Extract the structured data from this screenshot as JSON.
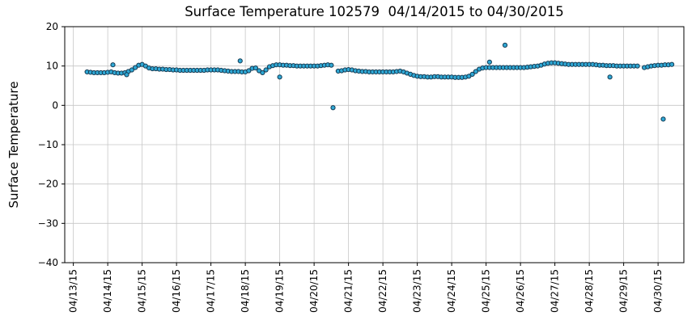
{
  "figure": {
    "title": "Surface Temperature 102579  04/14/2015 to 04/30/2015",
    "ylabel": "Surface Temperature"
  },
  "chart_data": {
    "type": "scatter",
    "title": "Surface Temperature 102579  04/14/2015 to 04/30/2015",
    "xlabel": "",
    "ylabel": "Surface Temperature",
    "x_unit": "day-of-month (April 2015)",
    "xlim": [
      12.75,
      30.75
    ],
    "ylim": [
      -40,
      20
    ],
    "grid": true,
    "grid_color": "#c6c6c6",
    "marker": {
      "fill": "#2fa8d5",
      "edge": "#143a52",
      "radius": 2.6
    },
    "x_ticks": [
      {
        "value": 13,
        "label": "04/13/15"
      },
      {
        "value": 14,
        "label": "04/14/15"
      },
      {
        "value": 15,
        "label": "04/15/15"
      },
      {
        "value": 16,
        "label": "04/16/15"
      },
      {
        "value": 17,
        "label": "04/17/15"
      },
      {
        "value": 18,
        "label": "04/18/15"
      },
      {
        "value": 19,
        "label": "04/19/15"
      },
      {
        "value": 20,
        "label": "04/20/15"
      },
      {
        "value": 21,
        "label": "04/21/15"
      },
      {
        "value": 22,
        "label": "04/22/15"
      },
      {
        "value": 23,
        "label": "04/23/15"
      },
      {
        "value": 24,
        "label": "04/24/15"
      },
      {
        "value": 25,
        "label": "04/25/15"
      },
      {
        "value": 26,
        "label": "04/26/15"
      },
      {
        "value": 27,
        "label": "04/27/15"
      },
      {
        "value": 28,
        "label": "04/28/15"
      },
      {
        "value": 29,
        "label": "04/29/15"
      },
      {
        "value": 30,
        "label": "04/30/15"
      }
    ],
    "y_ticks": [
      {
        "value": 20,
        "label": "20"
      },
      {
        "value": 10,
        "label": "10"
      },
      {
        "value": 0,
        "label": "0"
      },
      {
        "value": -10,
        "label": "−10"
      },
      {
        "value": -20,
        "label": "−20"
      },
      {
        "value": -30,
        "label": "−30"
      },
      {
        "value": -40,
        "label": "−40"
      }
    ],
    "series": [
      {
        "name": "surface_temperature",
        "points": [
          [
            13.4,
            8.5
          ],
          [
            13.5,
            8.4
          ],
          [
            13.6,
            8.3
          ],
          [
            13.7,
            8.3
          ],
          [
            13.8,
            8.3
          ],
          [
            13.9,
            8.3
          ],
          [
            14.0,
            8.4
          ],
          [
            14.1,
            8.5
          ],
          [
            14.2,
            8.3
          ],
          [
            14.3,
            8.2
          ],
          [
            14.4,
            8.2
          ],
          [
            14.5,
            8.3
          ],
          [
            14.6,
            8.6
          ],
          [
            14.7,
            9.0
          ],
          [
            14.8,
            9.6
          ],
          [
            14.9,
            10.2
          ],
          [
            15.0,
            10.4
          ],
          [
            15.1,
            10.0
          ],
          [
            15.2,
            9.5
          ],
          [
            15.3,
            9.3
          ],
          [
            15.4,
            9.3
          ],
          [
            15.5,
            9.2
          ],
          [
            15.6,
            9.2
          ],
          [
            15.7,
            9.1
          ],
          [
            15.8,
            9.1
          ],
          [
            15.9,
            9.0
          ],
          [
            16.0,
            9.0
          ],
          [
            16.1,
            8.9
          ],
          [
            16.2,
            8.9
          ],
          [
            16.3,
            8.9
          ],
          [
            16.4,
            8.9
          ],
          [
            16.5,
            8.9
          ],
          [
            16.6,
            8.9
          ],
          [
            16.7,
            8.9
          ],
          [
            16.8,
            8.9
          ],
          [
            16.9,
            9.0
          ],
          [
            17.0,
            9.0
          ],
          [
            17.1,
            9.0
          ],
          [
            17.2,
            9.0
          ],
          [
            17.3,
            8.9
          ],
          [
            17.4,
            8.8
          ],
          [
            17.5,
            8.7
          ],
          [
            17.6,
            8.6
          ],
          [
            17.7,
            8.6
          ],
          [
            17.8,
            8.6
          ],
          [
            17.9,
            8.5
          ],
          [
            18.0,
            8.5
          ],
          [
            18.1,
            8.8
          ],
          [
            18.2,
            9.4
          ],
          [
            18.3,
            9.5
          ],
          [
            18.4,
            8.8
          ],
          [
            18.5,
            8.3
          ],
          [
            18.6,
            9.0
          ],
          [
            18.7,
            9.8
          ],
          [
            18.8,
            10.1
          ],
          [
            18.9,
            10.3
          ],
          [
            19.0,
            10.3
          ],
          [
            19.1,
            10.2
          ],
          [
            19.2,
            10.2
          ],
          [
            19.3,
            10.1
          ],
          [
            19.4,
            10.1
          ],
          [
            19.5,
            10.0
          ],
          [
            19.6,
            10.0
          ],
          [
            19.7,
            10.0
          ],
          [
            19.8,
            10.0
          ],
          [
            19.9,
            10.0
          ],
          [
            20.0,
            10.0
          ],
          [
            20.1,
            10.0
          ],
          [
            20.2,
            10.1
          ],
          [
            20.3,
            10.2
          ],
          [
            20.4,
            10.3
          ],
          [
            20.5,
            10.2
          ],
          [
            20.7,
            8.7
          ],
          [
            20.8,
            8.8
          ],
          [
            20.9,
            9.0
          ],
          [
            21.0,
            9.1
          ],
          [
            21.1,
            9.0
          ],
          [
            21.2,
            8.8
          ],
          [
            21.3,
            8.7
          ],
          [
            21.4,
            8.6
          ],
          [
            21.5,
            8.6
          ],
          [
            21.6,
            8.5
          ],
          [
            21.7,
            8.5
          ],
          [
            21.8,
            8.5
          ],
          [
            21.9,
            8.5
          ],
          [
            22.0,
            8.5
          ],
          [
            22.1,
            8.5
          ],
          [
            22.2,
            8.5
          ],
          [
            22.3,
            8.5
          ],
          [
            22.4,
            8.6
          ],
          [
            22.5,
            8.7
          ],
          [
            22.6,
            8.5
          ],
          [
            22.7,
            8.2
          ],
          [
            22.8,
            7.9
          ],
          [
            22.9,
            7.6
          ],
          [
            23.0,
            7.4
          ],
          [
            23.1,
            7.3
          ],
          [
            23.2,
            7.3
          ],
          [
            23.3,
            7.2
          ],
          [
            23.4,
            7.2
          ],
          [
            23.5,
            7.3
          ],
          [
            23.6,
            7.3
          ],
          [
            23.7,
            7.2
          ],
          [
            23.8,
            7.2
          ],
          [
            23.9,
            7.2
          ],
          [
            24.0,
            7.2
          ],
          [
            24.1,
            7.1
          ],
          [
            24.2,
            7.1
          ],
          [
            24.3,
            7.1
          ],
          [
            24.4,
            7.2
          ],
          [
            24.5,
            7.4
          ],
          [
            24.6,
            7.9
          ],
          [
            24.7,
            8.6
          ],
          [
            24.8,
            9.2
          ],
          [
            24.9,
            9.5
          ],
          [
            25.0,
            9.6
          ],
          [
            25.1,
            9.6
          ],
          [
            25.2,
            9.6
          ],
          [
            25.3,
            9.6
          ],
          [
            25.4,
            9.6
          ],
          [
            25.5,
            9.6
          ],
          [
            25.6,
            9.6
          ],
          [
            25.7,
            9.6
          ],
          [
            25.8,
            9.6
          ],
          [
            25.9,
            9.6
          ],
          [
            26.0,
            9.6
          ],
          [
            26.1,
            9.6
          ],
          [
            26.2,
            9.7
          ],
          [
            26.3,
            9.8
          ],
          [
            26.4,
            9.9
          ],
          [
            26.5,
            10.0
          ],
          [
            26.6,
            10.2
          ],
          [
            26.7,
            10.5
          ],
          [
            26.8,
            10.7
          ],
          [
            26.9,
            10.8
          ],
          [
            27.0,
            10.8
          ],
          [
            27.1,
            10.7
          ],
          [
            27.2,
            10.6
          ],
          [
            27.3,
            10.5
          ],
          [
            27.4,
            10.4
          ],
          [
            27.5,
            10.4
          ],
          [
            27.6,
            10.4
          ],
          [
            27.7,
            10.4
          ],
          [
            27.8,
            10.4
          ],
          [
            27.9,
            10.4
          ],
          [
            28.0,
            10.4
          ],
          [
            28.1,
            10.4
          ],
          [
            28.2,
            10.3
          ],
          [
            28.3,
            10.2
          ],
          [
            28.4,
            10.2
          ],
          [
            28.5,
            10.1
          ],
          [
            28.6,
            10.1
          ],
          [
            28.7,
            10.1
          ],
          [
            28.8,
            10.0
          ],
          [
            28.9,
            10.0
          ],
          [
            29.0,
            10.0
          ],
          [
            29.1,
            10.0
          ],
          [
            29.2,
            10.0
          ],
          [
            29.3,
            10.0
          ],
          [
            29.4,
            10.0
          ],
          [
            29.6,
            9.6
          ],
          [
            29.7,
            9.8
          ],
          [
            29.8,
            10.0
          ],
          [
            29.9,
            10.1
          ],
          [
            30.0,
            10.2
          ],
          [
            30.1,
            10.2
          ],
          [
            30.2,
            10.3
          ],
          [
            30.3,
            10.3
          ],
          [
            30.4,
            10.4
          ]
        ]
      },
      {
        "name": "outliers",
        "points": [
          [
            14.15,
            10.3
          ],
          [
            14.55,
            7.8
          ],
          [
            17.85,
            11.3
          ],
          [
            19.0,
            7.2
          ],
          [
            20.55,
            -0.6
          ],
          [
            25.1,
            11.0
          ],
          [
            25.55,
            15.3
          ],
          [
            28.6,
            7.2
          ],
          [
            30.15,
            -3.5
          ]
        ]
      }
    ]
  }
}
